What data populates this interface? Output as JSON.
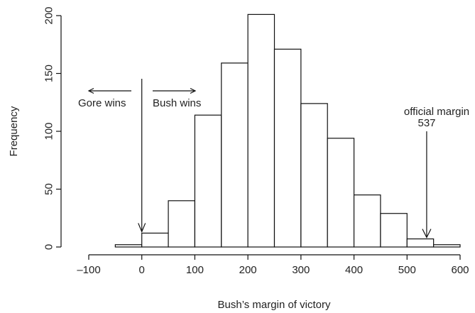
{
  "chart_data": {
    "type": "bar",
    "title": "",
    "xlabel": "Bush’s margin of victory",
    "ylabel": "Frequency",
    "xlim": [
      -100,
      600
    ],
    "ylim": [
      0,
      200
    ],
    "x_ticks": [
      -100,
      0,
      100,
      200,
      300,
      400,
      500,
      600
    ],
    "x_tick_labels": [
      "–100",
      "0",
      "100",
      "200",
      "300",
      "400",
      "500",
      "600"
    ],
    "y_ticks": [
      0,
      50,
      100,
      150,
      200
    ],
    "y_tick_labels": [
      "0",
      "50",
      "100",
      "150",
      "200"
    ],
    "bins": [
      {
        "start": -50,
        "end": 0,
        "count": 2
      },
      {
        "start": 0,
        "end": 50,
        "count": 12
      },
      {
        "start": 50,
        "end": 100,
        "count": 40
      },
      {
        "start": 100,
        "end": 150,
        "count": 114
      },
      {
        "start": 150,
        "end": 200,
        "count": 159
      },
      {
        "start": 200,
        "end": 250,
        "count": 201
      },
      {
        "start": 250,
        "end": 300,
        "count": 171
      },
      {
        "start": 300,
        "end": 350,
        "count": 124
      },
      {
        "start": 350,
        "end": 400,
        "count": 94
      },
      {
        "start": 400,
        "end": 450,
        "count": 45
      },
      {
        "start": 450,
        "end": 500,
        "count": 29
      },
      {
        "start": 500,
        "end": 550,
        "count": 7
      },
      {
        "start": 550,
        "end": 600,
        "count": 2
      }
    ],
    "grid": false,
    "annotations": {
      "gore_label": "Gore wins",
      "bush_label": "Bush wins",
      "zero_marker_x": 0,
      "official_label_line1": "official margin",
      "official_label_line2": "537",
      "official_margin_x": 537
    }
  }
}
